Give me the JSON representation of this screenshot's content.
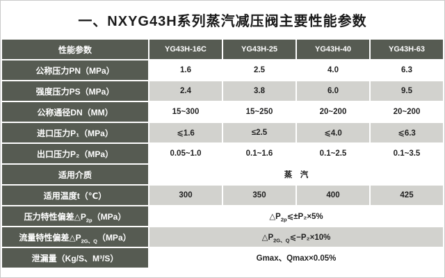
{
  "page": {
    "title": "一、NXYG43H系列蒸汽减压阀主要性能参数"
  },
  "colors": {
    "header_bg": "#565b52",
    "row_alt_bg": "#d2d2ce",
    "row_bg": "#ffffff",
    "header_text": "#ffffff",
    "value_text": "#1f1f1f"
  },
  "table": {
    "header": {
      "param": "性能参数",
      "cols": [
        "YG43H-16C",
        "YG43H-25",
        "YG43H-40",
        "YG43H-63"
      ]
    },
    "rows": [
      {
        "label": "公称压力PN（MPa）",
        "values": [
          "1.6",
          "2.5",
          "4.0",
          "6.3"
        ]
      },
      {
        "label": "强度压力PS（MPa）",
        "values": [
          "2.4",
          "3.8",
          "6.0",
          "9.5"
        ]
      },
      {
        "label": "公称通径DN（MM）",
        "values": [
          "15~300",
          "15~250",
          "20~200",
          "20~200"
        ]
      },
      {
        "label": "进口压力P₁（MPa）",
        "values": [
          "⩽1.6",
          "≤2.5",
          "⩽4.0",
          "⩽6.3"
        ]
      },
      {
        "label": "出口压力P₂（MPa）",
        "values": [
          "0.05~1.0",
          "0.1~1.6",
          "0.1~2.5",
          "0.1~3.5"
        ]
      },
      {
        "label": "适用介质",
        "merged_value": "蒸　汽"
      },
      {
        "label": "适用温度t（℃）",
        "values": [
          "300",
          "350",
          "400",
          "425"
        ]
      },
      {
        "label_parts": [
          "压力特性偏差△P",
          "2p",
          "（MPa）"
        ],
        "value_parts": [
          "△P",
          "2p",
          "⩽±P₂×5%"
        ]
      },
      {
        "label_parts": [
          "流量特性偏差△P",
          "2G、Q",
          "（MPa）"
        ],
        "value_parts": [
          "△P",
          "2G、Q",
          "⩽−P₂×10%"
        ]
      },
      {
        "label": "泄漏量（Kg/S、M³/S）",
        "merged_value": "Gmax、Qmax×0.05%"
      }
    ]
  }
}
